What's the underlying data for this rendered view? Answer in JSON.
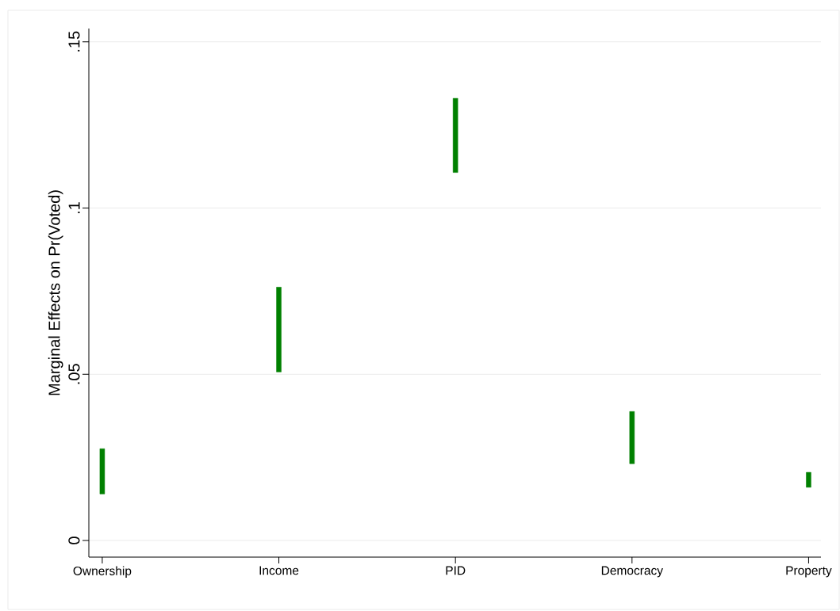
{
  "chart_data": {
    "type": "bar",
    "ylabel": "Marginal Effects on Pr(Voted)",
    "categories": [
      "Ownership",
      "Income",
      "PID",
      "Democracy",
      "Property"
    ],
    "base": [
      0.014,
      0.0507,
      0.1107,
      0.0231,
      0.016
    ],
    "values": [
      0.0136,
      0.0255,
      0.0223,
      0.0157,
      0.0045
    ],
    "color": "#008000",
    "ylim": [
      -0.005,
      0.154
    ],
    "yticks": [
      {
        "value": 0,
        "label": "0"
      },
      {
        "value": 0.05,
        "label": ".05"
      },
      {
        "value": 0.1,
        "label": ".1"
      },
      {
        "value": 0.15,
        "label": ".15"
      }
    ],
    "grid": "y"
  }
}
